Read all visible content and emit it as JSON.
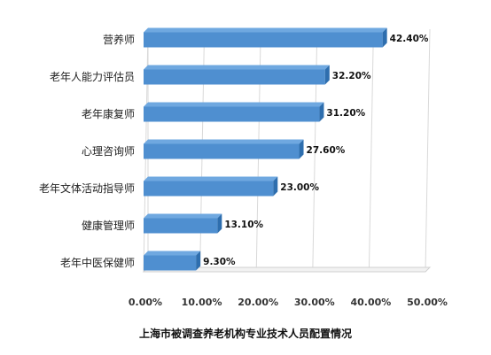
{
  "chart_data": {
    "type": "bar",
    "orientation": "horizontal",
    "title": "上海市被调查养老机构专业技术人员配置情况",
    "categories": [
      "营养师",
      "老年人能力评估员",
      "老年康复师",
      "心理咨询师",
      "老年文体活动指导师",
      "健康管理师",
      "老年中医保健师"
    ],
    "values": [
      42.4,
      32.2,
      31.2,
      27.6,
      23.0,
      13.1,
      9.3
    ],
    "value_labels": [
      "42.40%",
      "32.20%",
      "31.20%",
      "27.60%",
      "23.00%",
      "13.10%",
      "9.30%"
    ],
    "xlim": [
      0,
      50
    ],
    "xticks": [
      0,
      10,
      20,
      30,
      40,
      50
    ],
    "xtick_labels": [
      "0.00%",
      "10.00%",
      "20.00%",
      "30.00%",
      "40.00%",
      "50.00%"
    ],
    "xlabel": "",
    "ylabel": "",
    "grid": true,
    "legend": "none",
    "bar_color": "#4F8FD0",
    "bar_top_color": "#6FA8E0",
    "bar_side_color": "#2E6EAE"
  }
}
